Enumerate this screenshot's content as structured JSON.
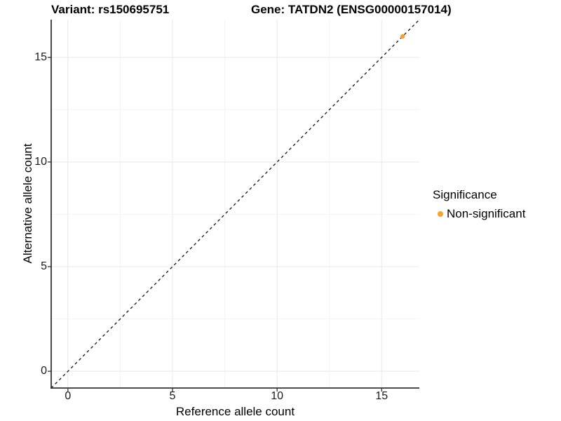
{
  "chart_data": {
    "type": "scatter",
    "titles": {
      "left": "Variant: rs150695751",
      "right": "Gene: TATDN2 (ENSG00000157014)"
    },
    "xlabel": "Reference allele count",
    "ylabel": "Alternative allele count",
    "xlim": [
      -0.8,
      16.8
    ],
    "ylim": [
      -0.8,
      16.8
    ],
    "x_ticks": [
      0,
      5,
      10,
      15
    ],
    "y_ticks": [
      0,
      5,
      10,
      15
    ],
    "x_minor_ticks": [
      2.5,
      7.5,
      12.5
    ],
    "y_minor_ticks": [
      2.5,
      7.5,
      12.5
    ],
    "grid": {
      "major": true,
      "minor": true
    },
    "identity_line": {
      "style": "dashed",
      "slope": 1,
      "intercept": 0,
      "color": "#111111"
    },
    "series": [
      {
        "name": "Non-significant",
        "color": "#F9A12B",
        "points": [
          {
            "x": 16,
            "y": 16
          }
        ]
      }
    ],
    "legend": {
      "title": "Significance",
      "position": "right",
      "items": [
        {
          "label": "Non-significant",
          "color": "#F9A12B",
          "marker": "circle-icon"
        }
      ]
    }
  },
  "colors": {
    "background": "#FFFFFF",
    "axis_line": "#333333",
    "tick_mark": "#333333",
    "grid_major": "#E8E8E8",
    "grid_minor": "#F4F4F4",
    "tick_text": "#1A1A1A",
    "point_orange": "#F9A12B"
  }
}
